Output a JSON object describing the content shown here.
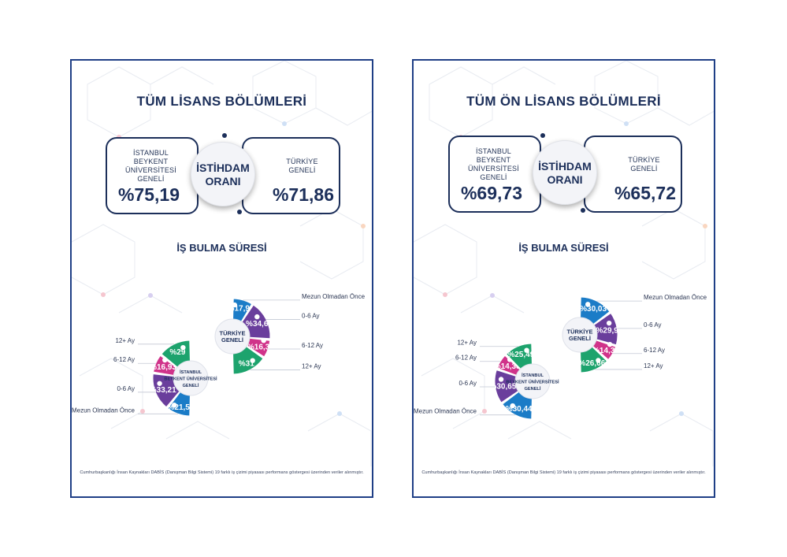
{
  "colors": {
    "navy": "#1c2f5a",
    "border": "#1f3f86",
    "blue": "#1b7cc7",
    "purple": "#6a3e9c",
    "pink": "#d0338a",
    "green": "#1da36d"
  },
  "cards": [
    {
      "title": "TÜM LİSANS BÖLÜMLERİ",
      "employment": {
        "left_label": [
          "İSTANBUL",
          "BEYKENT ÜNİVERSİTESİ",
          "GENELİ"
        ],
        "left_value": "%75,19",
        "center_lines": [
          "İSTİHDAM",
          "ORANI"
        ],
        "right_label": [
          "TÜRKİYE",
          "GENELİ"
        ],
        "right_value": "%71,86"
      },
      "section_title": "İŞ BULMA SÜRESİ",
      "footnote": "Cumhurbaşkanlığı İnsan Kaynakları DABİS (Danışman Bilgi Sistemi) 19 farklı iş çizimi piyasası performans göstergesi üzerinden veriler alınmıştır.",
      "chart_data": {
        "type": "pie",
        "categories": [
          "Mezun Olmadan Önce",
          "0-6 Ay",
          "6-12 Ay",
          "12+ Ay"
        ],
        "series": [
          {
            "name": "TÜRKİYE GENELİ",
            "center_lines": [
              "TÜRKİYE",
              "GENELİ"
            ],
            "values": [
              17.94,
              34.68,
              16.38,
              31
            ],
            "labels": [
              "%17,94",
              "%34,68",
              "%16,38",
              "%31"
            ]
          },
          {
            "name": "İSTANBUL BEYKENT ÜNİVERSİTESİ GENELİ",
            "center_lines": [
              "İSTANBUL",
              "BEYKENT ÜNİVERSİTESİ",
              "GENELİ"
            ],
            "values": [
              21.56,
              33.21,
              16.93,
              29
            ],
            "labels": [
              "%21,56",
              "%33,21",
              "%16,93",
              "%29"
            ]
          }
        ]
      }
    },
    {
      "title": "TÜM ÖN LİSANS BÖLÜMLERİ",
      "employment": {
        "left_label": [
          "İSTANBUL",
          "BEYKENT ÜNİVERSİTESİ",
          "GENELİ"
        ],
        "left_value": "%69,73",
        "center_lines": [
          "İSTİHDAM",
          "ORANI"
        ],
        "right_label": [
          "TÜRKİYE",
          "GENELİ"
        ],
        "right_value": "%65,72"
      },
      "section_title": "İŞ BULMA SÜRESİ",
      "footnote": "Cumhurbaşkanlığı İnsan Kaynakları DABİS (Danışman Bilgi Sistemi) 19 farklı iş çizimi piyasası performans göstergesi üzerinden veriler alınmıştır.",
      "chart_data": {
        "type": "pie",
        "categories": [
          "Mezun Olmadan Önce",
          "0-6 Ay",
          "6-12 Ay",
          "12+ Ay"
        ],
        "series": [
          {
            "name": "TÜRKİYE GENELİ",
            "center_lines": [
              "TÜRKİYE",
              "GENELİ"
            ],
            "values": [
              30.03,
              29.96,
              14.33,
              26.66
            ],
            "labels": [
              "%30,03",
              "%29,96",
              "%14,33",
              "%26,66"
            ]
          },
          {
            "name": "İSTANBUL BEYKENT ÜNİVERSİTESİ GENELİ",
            "center_lines": [
              "İSTANBUL",
              "BEYKENT ÜNİVERSİTESİ",
              "GENELİ"
            ],
            "values": [
              30.44,
              30.65,
              14.33,
              25.49
            ],
            "labels": [
              "%30,44",
              "%30,65",
              "%14,33",
              "%25,49"
            ]
          }
        ]
      }
    }
  ]
}
